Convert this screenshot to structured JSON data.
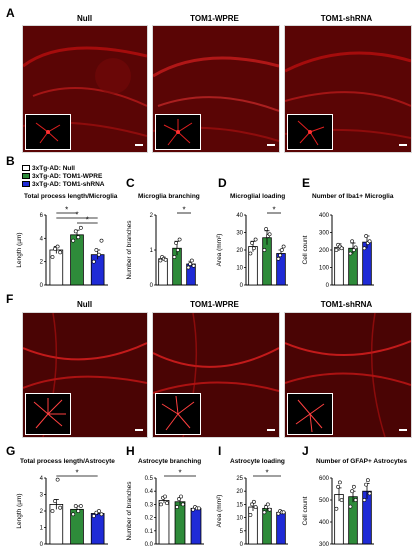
{
  "panel_letters": [
    "A",
    "B",
    "C",
    "D",
    "E",
    "F",
    "G",
    "H",
    "I",
    "J"
  ],
  "columns_top": [
    "Null",
    "TOM1-WPRE",
    "TOM1-shRNA"
  ],
  "columns_bottom": [
    "Null",
    "TOM1-WPRE",
    "TOM1-shRNA"
  ],
  "legend": [
    {
      "label": "3xTg-AD: Null",
      "color": "#ffffff"
    },
    {
      "label": "3xTg-AD: TOM1-WPRE",
      "color": "#2e8b3a"
    },
    {
      "label": "3xTg-AD: TOM1-shRNA",
      "color": "#1f2bd6"
    }
  ],
  "colors": {
    "null": "#ffffff",
    "wpre": "#2e8b3a",
    "shrna": "#1f2bd6",
    "tissue": "#c41010"
  },
  "chart_data": [
    {
      "type": "bar",
      "id": "B",
      "title": "Total process length/Microglia",
      "ylabel": "Length (µm)",
      "ylim": [
        0,
        6
      ],
      "yticks": [
        "0",
        "2",
        "4",
        "6"
      ],
      "values": [
        3.0,
        4.3,
        2.6
      ],
      "errors": [
        0.3,
        0.4,
        0.4
      ],
      "points": [
        [
          2.4,
          3.1,
          3.3,
          2.8
        ],
        [
          3.8,
          4.6,
          4.1,
          4.9
        ],
        [
          2.0,
          3.0,
          2.6,
          3.8
        ]
      ],
      "sig": [
        {
          "from": 0,
          "to": 1,
          "label": "*"
        },
        {
          "from": 0,
          "to": 2,
          "label": "*"
        },
        {
          "from": 1,
          "to": 2,
          "label": "*"
        }
      ]
    },
    {
      "type": "bar",
      "id": "C",
      "title": "Microglia branching",
      "ylabel": "Number of branches",
      "ylim": [
        0,
        2
      ],
      "yticks": [
        "0",
        "1",
        "2"
      ],
      "values": [
        0.75,
        1.05,
        0.6
      ],
      "errors": [
        0.05,
        0.2,
        0.08
      ],
      "points": [
        [
          0.7,
          0.8,
          0.75,
          0.72
        ],
        [
          0.8,
          1.2,
          1.0,
          1.3
        ],
        [
          0.5,
          0.6,
          0.7,
          0.55
        ]
      ],
      "sig": [
        {
          "from": 1,
          "to": 2,
          "label": "*"
        }
      ]
    },
    {
      "type": "bar",
      "id": "D",
      "title": "Microglial loading",
      "ylabel": "Area (mm²)",
      "ylim": [
        0,
        40
      ],
      "yticks": [
        "0",
        "10",
        "20",
        "30",
        "40"
      ],
      "values": [
        22,
        27,
        18
      ],
      "errors": [
        3,
        4,
        2
      ],
      "points": [
        [
          18,
          24,
          21,
          26
        ],
        [
          20,
          32,
          28,
          29
        ],
        [
          15,
          17,
          20,
          22
        ]
      ],
      "sig": [
        {
          "from": 1,
          "to": 2,
          "label": "*"
        }
      ]
    },
    {
      "type": "bar",
      "id": "E",
      "title": "Number of Iba1+ Microglia",
      "ylabel": "Cell count",
      "ylim": [
        0,
        400
      ],
      "yticks": [
        "0",
        "100",
        "200",
        "300",
        "400"
      ],
      "values": [
        215,
        210,
        245
      ],
      "errors": [
        20,
        30,
        35
      ],
      "points": [
        [
          200,
          230,
          220,
          210
        ],
        [
          180,
          250,
          200,
          215
        ],
        [
          210,
          280,
          240,
          250
        ]
      ],
      "sig": []
    },
    {
      "type": "bar",
      "id": "G",
      "title": "Total process length/Astrocyte",
      "ylabel": "Length (µm)",
      "ylim": [
        0,
        4
      ],
      "yticks": [
        "0",
        "1",
        "2",
        "3",
        "4"
      ],
      "values": [
        2.4,
        2.1,
        1.85
      ],
      "errors": [
        0.3,
        0.2,
        0.1
      ],
      "points": [
        [
          2.0,
          2.6,
          3.9,
          2.2
        ],
        [
          1.8,
          2.3,
          2.0,
          2.3
        ],
        [
          1.7,
          1.9,
          2.0,
          1.8
        ]
      ],
      "sig": [
        {
          "from": 0,
          "to": 2,
          "label": "*"
        }
      ]
    },
    {
      "type": "bar",
      "id": "H",
      "title": "Astrocyte branching",
      "ylabel": "Number of branches",
      "ylim": [
        0,
        0.5
      ],
      "yticks": [
        "0.0",
        "0.1",
        "0.2",
        "0.3",
        "0.4",
        "0.5"
      ],
      "values": [
        0.33,
        0.32,
        0.27
      ],
      "errors": [
        0.02,
        0.03,
        0.01
      ],
      "points": [
        [
          0.3,
          0.35,
          0.36,
          0.31
        ],
        [
          0.28,
          0.34,
          0.36,
          0.3
        ],
        [
          0.26,
          0.28,
          0.27,
          0.27
        ]
      ],
      "sig": [
        {
          "from": 0,
          "to": 2,
          "label": "*"
        }
      ]
    },
    {
      "type": "bar",
      "id": "I",
      "title": "Astrocyte loading",
      "ylabel": "Area (mm²)",
      "ylim": [
        0,
        25
      ],
      "yticks": [
        "0",
        "5",
        "10",
        "15",
        "20",
        "25"
      ],
      "values": [
        14,
        13.5,
        12
      ],
      "errors": [
        1.5,
        1.2,
        0.5
      ],
      "points": [
        [
          11,
          15,
          16,
          14
        ],
        [
          12,
          14,
          15,
          13
        ],
        [
          11.5,
          12.5,
          12,
          12
        ]
      ],
      "sig": [
        {
          "from": 0,
          "to": 2,
          "label": "*"
        }
      ]
    },
    {
      "type": "bar",
      "id": "J",
      "title": "Number of GFAP+ Astrocytes",
      "ylabel": "Cell count",
      "ylim": [
        300,
        600
      ],
      "yticks": [
        "300",
        "400",
        "500",
        "600"
      ],
      "values": [
        525,
        515,
        540
      ],
      "errors": [
        30,
        25,
        35
      ],
      "points": [
        [
          460,
          560,
          580,
          500
        ],
        [
          470,
          540,
          560,
          500
        ],
        [
          500,
          570,
          590,
          530
        ]
      ],
      "sig": []
    }
  ]
}
